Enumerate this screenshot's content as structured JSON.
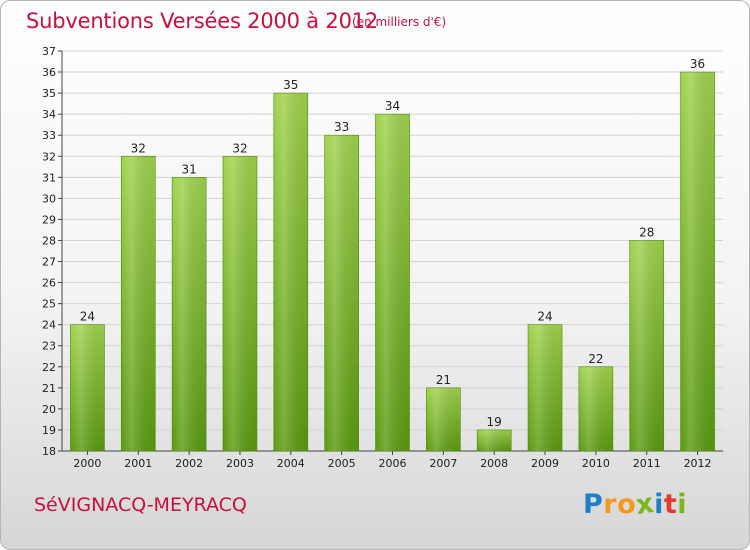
{
  "header": {
    "title": "Subventions Versées 2000 à 2012",
    "subtitle": "(en milliers d'€)"
  },
  "footer": {
    "commune": "SéVIGNACQ-MEYRACQ",
    "logo_letters": [
      "P",
      "r",
      "o",
      "x",
      "i",
      "t",
      "i"
    ],
    "logo_colors": [
      "#1f7fc4",
      "#f39a1c",
      "#f39a1c",
      "#7cb61e",
      "#1f7fc4",
      "#e23a2c",
      "#7cb61e"
    ]
  },
  "chart_data": {
    "type": "bar",
    "categories": [
      "2000",
      "2001",
      "2002",
      "2003",
      "2004",
      "2005",
      "2006",
      "2007",
      "2008",
      "2009",
      "2010",
      "2011",
      "2012"
    ],
    "values": [
      24,
      32,
      31,
      32,
      35,
      33,
      34,
      21,
      19,
      24,
      22,
      28,
      36
    ],
    "data_labels": [
      "24",
      "32",
      "31",
      "32",
      "35",
      "33",
      "34",
      "21",
      "19",
      "24",
      "22",
      "28",
      "36"
    ],
    "ylim": [
      18,
      37
    ],
    "yticks": [
      "18",
      "19",
      "20",
      "21",
      "22",
      "23",
      "24",
      "25",
      "26",
      "27",
      "28",
      "29",
      "30",
      "31",
      "32",
      "33",
      "34",
      "35",
      "36",
      "37"
    ],
    "grid": true,
    "bar_color_light": "#9fd24d",
    "bar_color_dark": "#5a9a10"
  }
}
